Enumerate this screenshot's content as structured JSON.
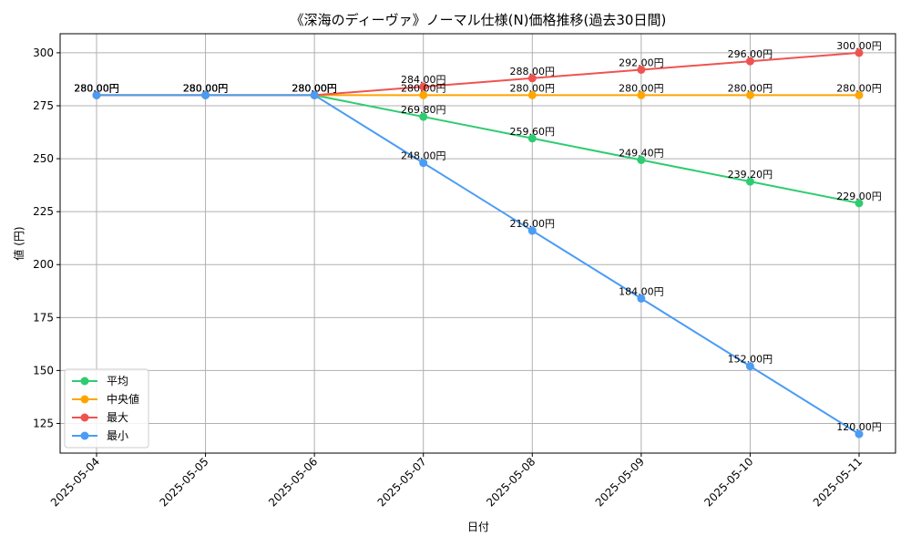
{
  "chart_data": {
    "type": "line",
    "title": "《深海のディーヴァ》ノーマル仕様(N)価格推移(過去30日間)",
    "xlabel": "日付",
    "ylabel": "値 (円)",
    "categories": [
      "2025-05-04",
      "2025-05-05",
      "2025-05-06",
      "2025-05-07",
      "2025-05-08",
      "2025-05-09",
      "2025-05-10",
      "2025-05-11"
    ],
    "ylim": [
      111,
      309
    ],
    "yticks": [
      125,
      150,
      175,
      200,
      225,
      250,
      275,
      300
    ],
    "grid": true,
    "legend_position": "lower-left",
    "value_suffix": "円",
    "series": [
      {
        "name": "平均",
        "color": "#2ecc71",
        "values": [
          280,
          280,
          280,
          269.8,
          259.6,
          249.4,
          239.2,
          229
        ]
      },
      {
        "name": "中央値",
        "color": "#ffa500",
        "values": [
          280,
          280,
          280,
          280,
          280,
          280,
          280,
          280
        ]
      },
      {
        "name": "最大",
        "color": "#ef5350",
        "values": [
          280,
          280,
          280,
          284,
          288,
          292,
          296,
          300
        ]
      },
      {
        "name": "最小",
        "color": "#4a9cf5",
        "values": [
          280,
          280,
          280,
          248,
          216,
          184,
          152,
          120
        ]
      }
    ]
  }
}
